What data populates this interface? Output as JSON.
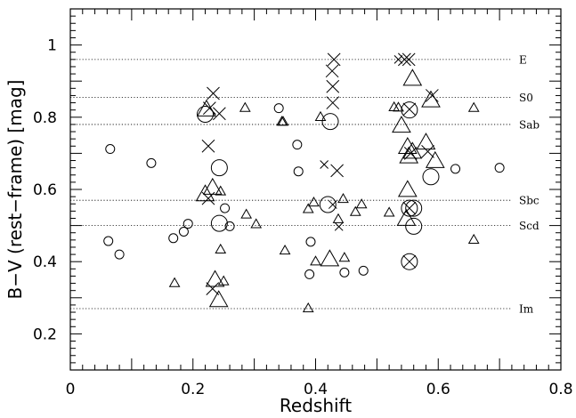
{
  "chart_data": {
    "type": "scatter",
    "xlabel": "Redshift",
    "ylabel": "B−V (rest−frame) [mag]",
    "xlim": [
      0,
      0.8
    ],
    "ylim": [
      0.1,
      1.1
    ],
    "xticks": [
      {
        "value": 0,
        "label": "0"
      },
      {
        "value": 0.2,
        "label": "0.2"
      },
      {
        "value": 0.4,
        "label": "0.4"
      },
      {
        "value": 0.6,
        "label": "0.6"
      },
      {
        "value": 0.8,
        "label": "0.8"
      }
    ],
    "yticks": [
      {
        "value": 0.2,
        "label": "0.2"
      },
      {
        "value": 0.4,
        "label": "0.4"
      },
      {
        "value": 0.6,
        "label": "0.6"
      },
      {
        "value": 0.8,
        "label": "0.8"
      },
      {
        "value": 1.0,
        "label": "1"
      }
    ],
    "reference_lines": [
      {
        "label": "E",
        "y": 0.96
      },
      {
        "label": "S0",
        "y": 0.855
      },
      {
        "label": "Sab",
        "y": 0.78
      },
      {
        "label": "Sbc",
        "y": 0.57
      },
      {
        "label": "Scd",
        "y": 0.5
      },
      {
        "label": "Im",
        "y": 0.27
      }
    ],
    "series": [
      {
        "marker": "circle",
        "points": [
          {
            "x": 0.065,
            "y": 0.712,
            "size": "s"
          },
          {
            "x": 0.062,
            "y": 0.457,
            "size": "s"
          },
          {
            "x": 0.08,
            "y": 0.42,
            "size": "s"
          },
          {
            "x": 0.132,
            "y": 0.673,
            "size": "s"
          },
          {
            "x": 0.168,
            "y": 0.465,
            "size": "s"
          },
          {
            "x": 0.185,
            "y": 0.483,
            "size": "s"
          },
          {
            "x": 0.192,
            "y": 0.505,
            "size": "s"
          },
          {
            "x": 0.22,
            "y": 0.808,
            "size": "l"
          },
          {
            "x": 0.243,
            "y": 0.66,
            "size": "l"
          },
          {
            "x": 0.243,
            "y": 0.506,
            "size": "l"
          },
          {
            "x": 0.252,
            "y": 0.548,
            "size": "s"
          },
          {
            "x": 0.26,
            "y": 0.498,
            "size": "s"
          },
          {
            "x": 0.34,
            "y": 0.825,
            "size": "s"
          },
          {
            "x": 0.37,
            "y": 0.724,
            "size": "s"
          },
          {
            "x": 0.372,
            "y": 0.65,
            "size": "s"
          },
          {
            "x": 0.39,
            "y": 0.365,
            "size": "s"
          },
          {
            "x": 0.392,
            "y": 0.455,
            "size": "s"
          },
          {
            "x": 0.42,
            "y": 0.558,
            "size": "l"
          },
          {
            "x": 0.424,
            "y": 0.788,
            "size": "l"
          },
          {
            "x": 0.447,
            "y": 0.37,
            "size": "s"
          },
          {
            "x": 0.478,
            "y": 0.375,
            "size": "s"
          },
          {
            "x": 0.553,
            "y": 0.82,
            "size": "l"
          },
          {
            "x": 0.553,
            "y": 0.548,
            "size": "l"
          },
          {
            "x": 0.56,
            "y": 0.548,
            "size": "l"
          },
          {
            "x": 0.56,
            "y": 0.498,
            "size": "l"
          },
          {
            "x": 0.553,
            "y": 0.4,
            "size": "l"
          },
          {
            "x": 0.588,
            "y": 0.635,
            "size": "l"
          },
          {
            "x": 0.628,
            "y": 0.657,
            "size": "s"
          },
          {
            "x": 0.7,
            "y": 0.66,
            "size": "s"
          }
        ]
      },
      {
        "marker": "triangle",
        "points": [
          {
            "x": 0.17,
            "y": 0.34,
            "size": "s"
          },
          {
            "x": 0.22,
            "y": 0.585,
            "size": "l"
          },
          {
            "x": 0.222,
            "y": 0.82,
            "size": "l"
          },
          {
            "x": 0.232,
            "y": 0.603,
            "size": "l"
          },
          {
            "x": 0.236,
            "y": 0.348,
            "size": "l"
          },
          {
            "x": 0.242,
            "y": 0.292,
            "size": "l"
          },
          {
            "x": 0.245,
            "y": 0.594,
            "size": "s"
          },
          {
            "x": 0.245,
            "y": 0.433,
            "size": "s"
          },
          {
            "x": 0.25,
            "y": 0.345,
            "size": "s"
          },
          {
            "x": 0.285,
            "y": 0.825,
            "size": "s"
          },
          {
            "x": 0.287,
            "y": 0.53,
            "size": "s"
          },
          {
            "x": 0.303,
            "y": 0.503,
            "size": "s"
          },
          {
            "x": 0.345,
            "y": 0.787,
            "size": "s"
          },
          {
            "x": 0.347,
            "y": 0.787,
            "size": "s"
          },
          {
            "x": 0.35,
            "y": 0.43,
            "size": "s"
          },
          {
            "x": 0.388,
            "y": 0.545,
            "size": "s"
          },
          {
            "x": 0.388,
            "y": 0.27,
            "size": "s"
          },
          {
            "x": 0.397,
            "y": 0.563,
            "size": "s"
          },
          {
            "x": 0.4,
            "y": 0.4,
            "size": "s"
          },
          {
            "x": 0.408,
            "y": 0.8,
            "size": "s"
          },
          {
            "x": 0.423,
            "y": 0.405,
            "size": "l"
          },
          {
            "x": 0.437,
            "y": 0.517,
            "size": "s"
          },
          {
            "x": 0.447,
            "y": 0.41,
            "size": "s"
          },
          {
            "x": 0.445,
            "y": 0.573,
            "size": "s"
          },
          {
            "x": 0.465,
            "y": 0.537,
            "size": "s"
          },
          {
            "x": 0.475,
            "y": 0.558,
            "size": "s"
          },
          {
            "x": 0.52,
            "y": 0.535,
            "size": "s"
          },
          {
            "x": 0.528,
            "y": 0.827,
            "size": "s"
          },
          {
            "x": 0.535,
            "y": 0.826,
            "size": "s"
          },
          {
            "x": 0.54,
            "y": 0.775,
            "size": "l"
          },
          {
            "x": 0.548,
            "y": 0.517,
            "size": "l"
          },
          {
            "x": 0.55,
            "y": 0.597,
            "size": "l"
          },
          {
            "x": 0.55,
            "y": 0.716,
            "size": "l"
          },
          {
            "x": 0.552,
            "y": 0.69,
            "size": "l"
          },
          {
            "x": 0.558,
            "y": 0.703,
            "size": "l"
          },
          {
            "x": 0.558,
            "y": 0.905,
            "size": "l"
          },
          {
            "x": 0.58,
            "y": 0.728,
            "size": "l"
          },
          {
            "x": 0.588,
            "y": 0.845,
            "size": "l"
          },
          {
            "x": 0.595,
            "y": 0.677,
            "size": "l"
          },
          {
            "x": 0.658,
            "y": 0.825,
            "size": "s"
          },
          {
            "x": 0.658,
            "y": 0.46,
            "size": "s"
          }
        ]
      },
      {
        "marker": "cross",
        "points": [
          {
            "x": 0.227,
            "y": 0.825,
            "size": "l"
          },
          {
            "x": 0.233,
            "y": 0.866,
            "size": "l"
          },
          {
            "x": 0.225,
            "y": 0.72,
            "size": "l"
          },
          {
            "x": 0.225,
            "y": 0.575,
            "size": "l"
          },
          {
            "x": 0.232,
            "y": 0.325,
            "size": "l"
          },
          {
            "x": 0.243,
            "y": 0.81,
            "size": "l"
          },
          {
            "x": 0.414,
            "y": 0.669,
            "size": "s"
          },
          {
            "x": 0.43,
            "y": 0.96,
            "size": "l"
          },
          {
            "x": 0.427,
            "y": 0.928,
            "size": "l"
          },
          {
            "x": 0.428,
            "y": 0.885,
            "size": "l"
          },
          {
            "x": 0.428,
            "y": 0.84,
            "size": "l"
          },
          {
            "x": 0.435,
            "y": 0.652,
            "size": "l"
          },
          {
            "x": 0.428,
            "y": 0.558,
            "size": "s"
          },
          {
            "x": 0.438,
            "y": 0.497,
            "size": "s"
          },
          {
            "x": 0.535,
            "y": 0.96,
            "size": "s"
          },
          {
            "x": 0.545,
            "y": 0.96,
            "size": "l"
          },
          {
            "x": 0.552,
            "y": 0.96,
            "size": "l"
          },
          {
            "x": 0.553,
            "y": 0.822,
            "size": "l"
          },
          {
            "x": 0.555,
            "y": 0.7,
            "size": "l"
          },
          {
            "x": 0.553,
            "y": 0.548,
            "size": "l"
          },
          {
            "x": 0.553,
            "y": 0.4,
            "size": "l"
          },
          {
            "x": 0.59,
            "y": 0.86,
            "size": "l"
          },
          {
            "x": 0.583,
            "y": 0.705,
            "size": "l"
          }
        ]
      }
    ]
  }
}
